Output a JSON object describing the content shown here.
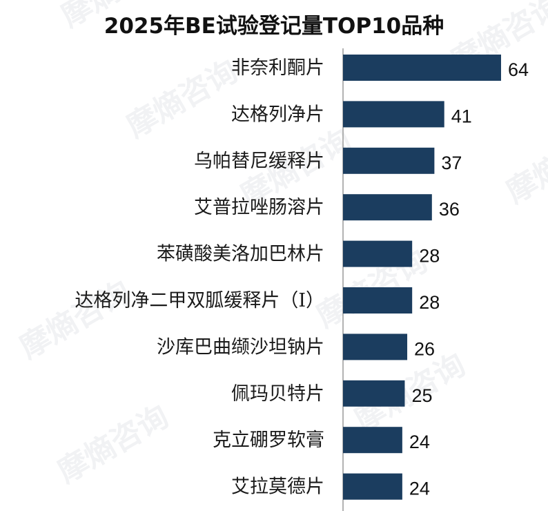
{
  "chart_data": {
    "type": "bar",
    "orientation": "horizontal",
    "title": "2025年BE试验登记量TOP10品种",
    "categories": [
      "非奈利酮片",
      "达格列净片",
      "乌帕替尼缓释片",
      "艾普拉唑肠溶片",
      "苯磺酸美洛加巴林片",
      "达格列净二甲双胍缓释片（Ⅰ）",
      "沙库巴曲缬沙坦钠片",
      "佩玛贝特片",
      "克立硼罗软膏",
      "艾拉莫德片"
    ],
    "values": [
      64,
      41,
      37,
      36,
      28,
      28,
      26,
      25,
      24,
      24
    ],
    "xlim": [
      0,
      64
    ],
    "grid": false,
    "legend": "none",
    "bar_color": "#1b3d5f",
    "axis_color": "#999999"
  },
  "watermark": {
    "text": "摩熵咨询"
  }
}
